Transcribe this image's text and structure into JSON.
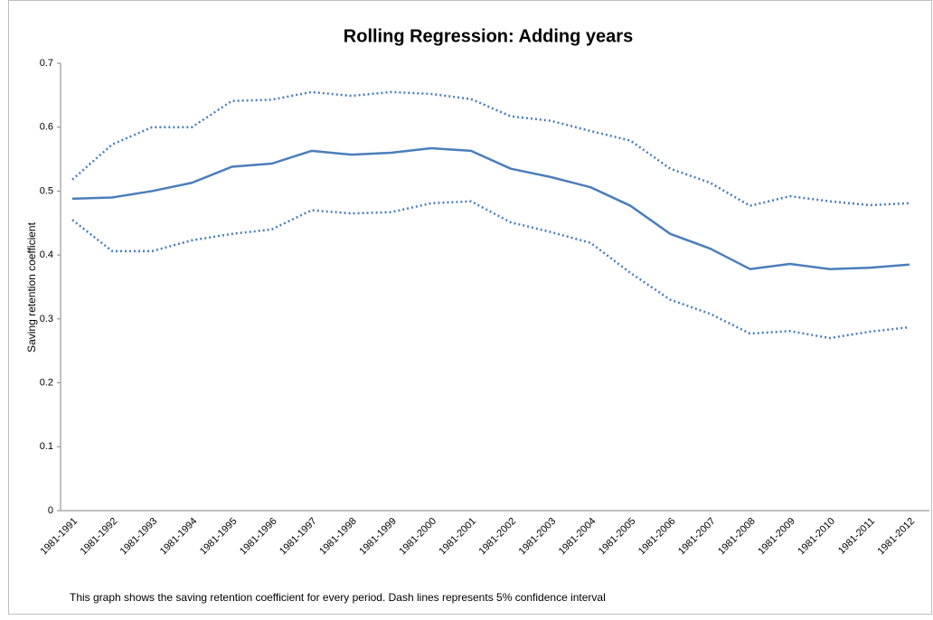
{
  "chart_data": {
    "type": "line",
    "title": "Rolling Regression: Adding years",
    "y_label": "Saving retention coefficient",
    "note": "This graph shows the saving retention coefficient for every period. Dash lines represents 5% confidence interval",
    "categories": [
      "1981-1991",
      "1981-1992",
      "1981-1993",
      "1981-1994",
      "1981-1995",
      "1981-1996",
      "1981-1997",
      "1981-1998",
      "1981-1999",
      "1981-2000",
      "1981-2001",
      "1981-2002",
      "1981-2003",
      "1981-2004",
      "1981-2005",
      "1981-2006",
      "1981-2007",
      "1981-2008",
      "1981-2009",
      "1981-2010",
      "1981-2011",
      "1981-2012"
    ],
    "series": [
      {
        "color": "#4a7ebb",
        "dash": "solid",
        "values": [
          0.488,
          0.49,
          0.5,
          0.513,
          0.538,
          0.543,
          0.563,
          0.557,
          0.56,
          0.567,
          0.563,
          0.535,
          0.522,
          0.506,
          0.477,
          0.433,
          0.41,
          0.378,
          0.386,
          0.378,
          0.38,
          0.385
        ]
      },
      {
        "color": "#4a7ebb",
        "dash": "dotted",
        "values": [
          0.518,
          0.573,
          0.6,
          0.6,
          0.641,
          0.643,
          0.655,
          0.649,
          0.655,
          0.652,
          0.644,
          0.617,
          0.61,
          0.594,
          0.579,
          0.535,
          0.513,
          0.477,
          0.492,
          0.484,
          0.478,
          0.481
        ]
      },
      {
        "color": "#4a7ebb",
        "dash": "dotted",
        "values": [
          0.455,
          0.406,
          0.406,
          0.423,
          0.433,
          0.44,
          0.47,
          0.465,
          0.467,
          0.481,
          0.484,
          0.451,
          0.436,
          0.419,
          0.372,
          0.33,
          0.308,
          0.277,
          0.281,
          0.27,
          0.28,
          0.287
        ]
      }
    ],
    "ylim": [
      0,
      0.7
    ],
    "yticks": [
      0,
      0.1,
      0.2,
      0.3,
      0.4,
      0.5,
      0.6,
      0.7
    ],
    "grid": false
  }
}
